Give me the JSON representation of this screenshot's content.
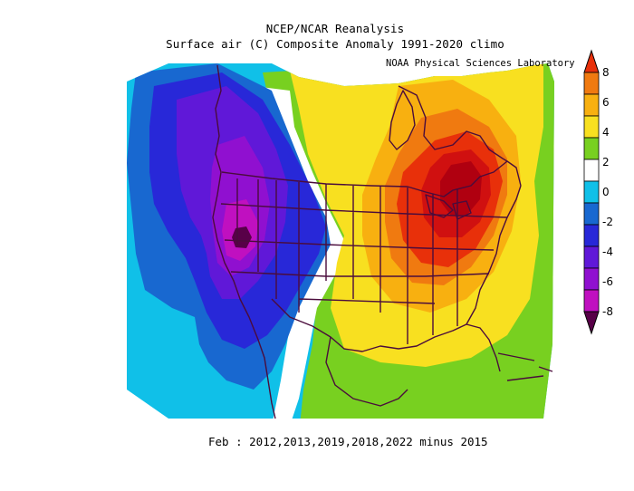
{
  "header": {
    "title": "NCEP/NCAR Reanalysis",
    "subtitle": "Surface air (C) Composite Anomaly 1991-2020 climo",
    "credit": "NOAA Physical Sciences Laboratory"
  },
  "caption": "Feb : 2012,2013,2019,2018,2022 minus 2015",
  "colorbar": {
    "labels": [
      "8",
      "6",
      "4",
      "2",
      "0",
      "-2",
      "-4",
      "-6",
      "-8"
    ],
    "colors": [
      "#e8300a",
      "#f07a10",
      "#f8b010",
      "#f8e020",
      "#78d020",
      "#ffffff",
      "#10c0e8",
      "#1868d0",
      "#2828d8",
      "#6018d8",
      "#9010d0",
      "#c010c0",
      "#580048"
    ]
  },
  "map": {
    "palette": {
      "cyan": "#10c0e8",
      "blue": "#1868d0",
      "deepblue": "#2828d8",
      "violet": "#6018d8",
      "purple": "#9010d0",
      "magenta": "#c010c0",
      "white": "#ffffff",
      "green": "#78d020",
      "yellow": "#f8e020",
      "gold": "#f8b010",
      "orange": "#f07a10",
      "redorange": "#e8300a",
      "red": "#d01010",
      "darkred": "#b00010",
      "boundary": "#4a0c3c"
    }
  }
}
